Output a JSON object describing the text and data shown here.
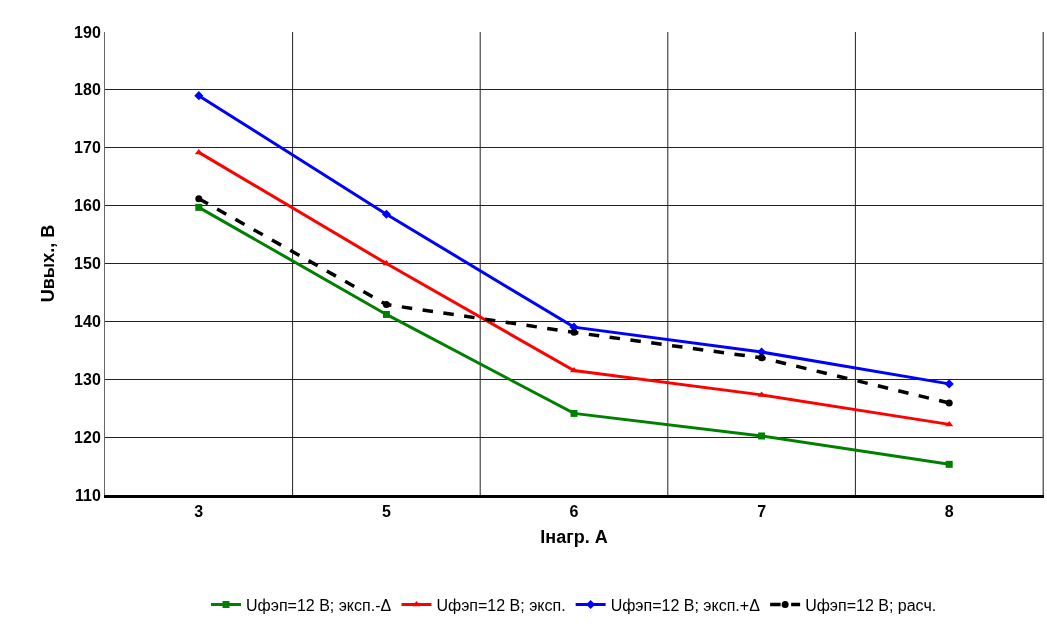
{
  "chart_data": {
    "type": "line",
    "xlabel": "Iнагр. А",
    "ylabel": "Uвых., В",
    "categories": [
      "3",
      "5",
      "6",
      "7",
      "8"
    ],
    "series": [
      {
        "name": "Uфэп=12 В; эксп.-Δ",
        "color": "#008000",
        "marker": "square",
        "line_style": "solid",
        "values": [
          159.7,
          141.2,
          124.1,
          120.2,
          115.3
        ]
      },
      {
        "name": "Uфэп=12 В; эксп.",
        "color": "#ff0000",
        "marker": "triangle",
        "line_style": "solid",
        "values": [
          169.2,
          150.0,
          131.5,
          127.3,
          122.2
        ]
      },
      {
        "name": "Uфэп=12 В; эксп.+Δ",
        "color": "#0000ff",
        "marker": "diamond",
        "line_style": "solid",
        "values": [
          179.0,
          158.5,
          139.0,
          134.7,
          129.2
        ]
      },
      {
        "name": "Uфэп=12 В; расч.",
        "color": "#000000",
        "marker": "circle",
        "line_style": "dashed",
        "values": [
          161.2,
          142.9,
          138.1,
          133.7,
          125.9
        ]
      }
    ],
    "ylim": [
      110,
      190
    ],
    "yticks": [
      110,
      120,
      130,
      140,
      150,
      160,
      170,
      180,
      190
    ],
    "grid": true,
    "legend": "bottom"
  }
}
